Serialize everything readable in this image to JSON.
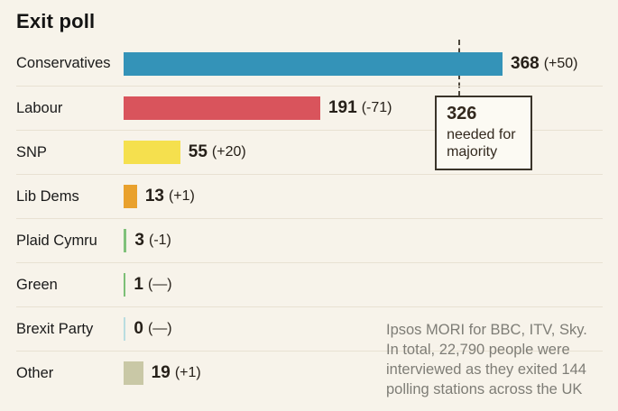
{
  "title": "Exit poll",
  "chart_data": {
    "type": "bar",
    "orientation": "horizontal",
    "title": "Exit poll",
    "categories": [
      "Conservatives",
      "Labour",
      "SNP",
      "Lib Dems",
      "Plaid Cymru",
      "Green",
      "Brexit Party",
      "Other"
    ],
    "values": [
      368,
      191,
      55,
      13,
      3,
      1,
      0,
      19
    ],
    "changes": [
      "(+50)",
      "(-71)",
      "(+20)",
      "(+1)",
      "(-1)",
      "(—)",
      "(—)",
      "(+1)"
    ],
    "bar_colors": [
      "#3493b8",
      "#d9545c",
      "#f5e04e",
      "#e9a12d",
      "#80c17a",
      "#7cbf76",
      "#b9dde0",
      "#c9c8a6"
    ],
    "xlim": [
      0,
      368
    ],
    "grid": false,
    "legend": false,
    "majority_line": {
      "value": 326,
      "label": "326",
      "sublabel": "needed for majority"
    }
  },
  "annotation": {
    "value": "326",
    "text": "needed for majority"
  },
  "source": {
    "lines": [
      "Ipsos MORI for BBC, ITV, Sky.",
      "In total, 22,790 people were",
      "interviewed as they exited 144",
      "polling stations across the UK"
    ]
  },
  "colors": {
    "background": "#f7f3ea",
    "divider": "#e8e1d2",
    "label_text": "#1a1a1a",
    "value_text": "#262019",
    "source_text": "#7e7d76",
    "majority_line": "#4c463c",
    "box_border": "#3a342a",
    "box_background": "#fcfaf3"
  }
}
